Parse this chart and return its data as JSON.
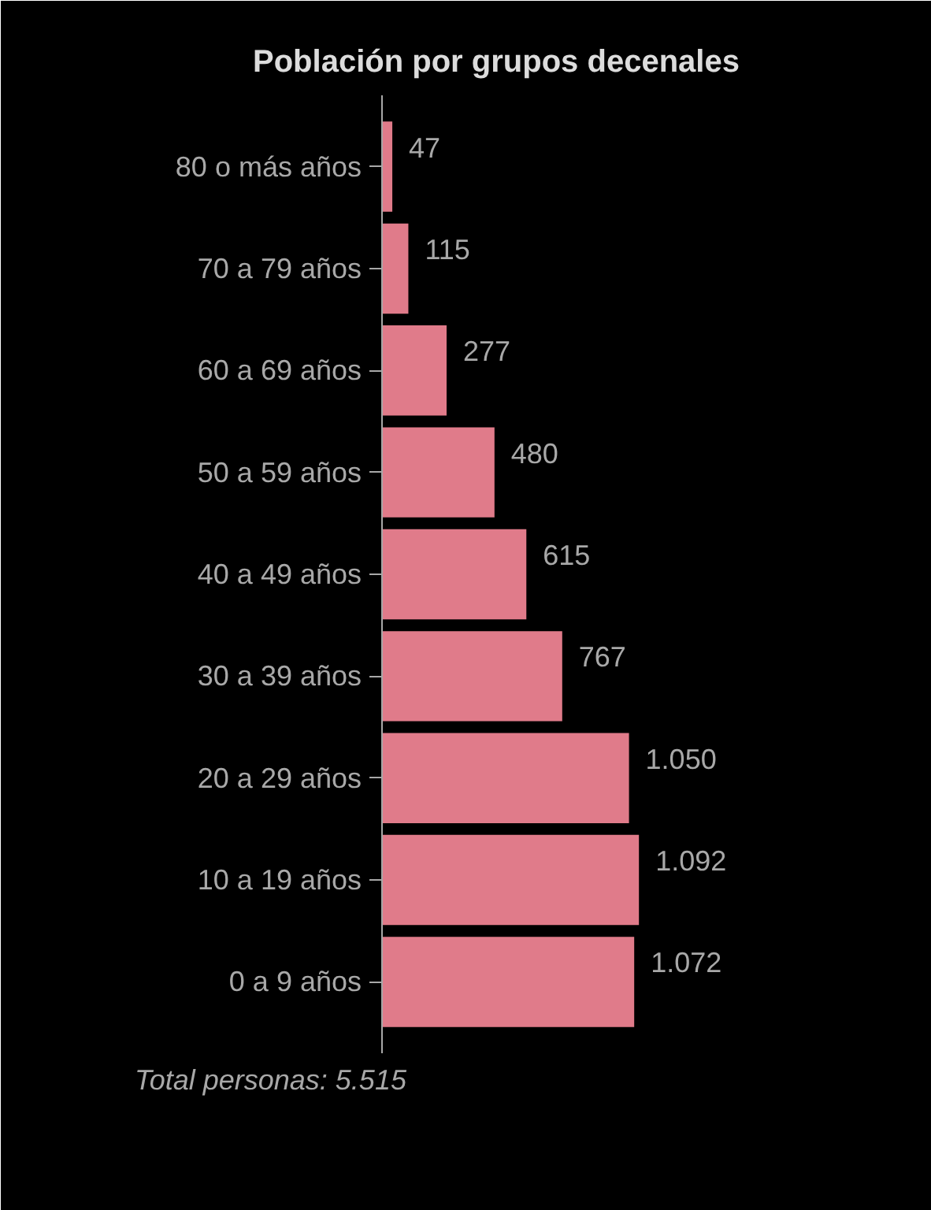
{
  "chart_data": {
    "type": "bar",
    "orientation": "horizontal",
    "title": "Población por grupos decenales",
    "categories": [
      "80 o más años",
      "70 a 79 años",
      "60 a 69 años",
      "50 a 59 años",
      "40 a 49 años",
      "30 a 39 años",
      "20 a 29 años",
      "10 a 19 años",
      "0 a 9 años"
    ],
    "values": [
      47,
      115,
      277,
      480,
      615,
      767,
      1050,
      1092,
      1072
    ],
    "value_labels": [
      "47",
      "115",
      "277",
      "480",
      "615",
      "767",
      "1.050",
      "1.092",
      "1.072"
    ],
    "color": "#e07b8a",
    "grid": false,
    "tick_labels": "y",
    "annotations": [
      "Total personas: 5.515"
    ]
  }
}
